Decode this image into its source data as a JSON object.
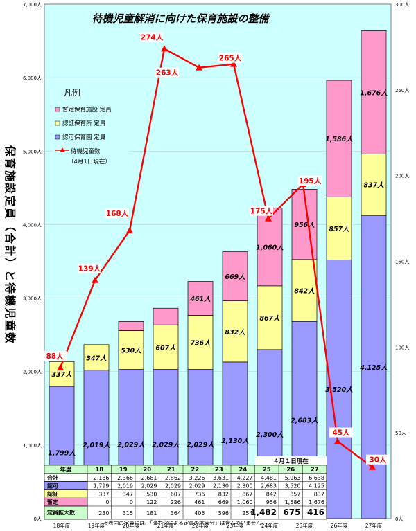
{
  "chart_data": {
    "type": "bar",
    "subtype": "stacked-bar-with-line",
    "title": "待機児童解消に向けた保育施設の整備",
    "ylabel_left": "保育施設定員（合計）と待機児童数",
    "ylim_left": [
      0,
      7000
    ],
    "ylim_right": [
      0,
      300
    ],
    "left_ticks": [
      "0人",
      "1,000人",
      "2,000人",
      "3,000人",
      "4,000人",
      "5,000人",
      "6,000人",
      "7,000人"
    ],
    "right_ticks": [
      "0人",
      "50人",
      "100人",
      "150人",
      "200人",
      "250人",
      "300人"
    ],
    "categories": [
      "18年度",
      "19年度",
      "20年度",
      "21年度",
      "22年度",
      "23年度",
      "24年度",
      "25年度",
      "26年度",
      "27年度"
    ],
    "series": [
      {
        "name": "認可保育園 定員",
        "color": "#9999ff",
        "values": [
          1799,
          2019,
          2029,
          2029,
          2029,
          2130,
          2300,
          2683,
          3520,
          4125
        ],
        "labels": [
          "1,799人",
          "2,019人",
          "2,029人",
          "2,029人",
          "2,029人",
          "2,130人",
          "2,300人",
          "2,683人",
          "3,520人",
          "4,125人"
        ]
      },
      {
        "name": "認証保育所 定員",
        "color": "#ffff99",
        "values": [
          337,
          347,
          530,
          607,
          736,
          832,
          867,
          842,
          857,
          837
        ],
        "labels": [
          "337人",
          "347人",
          "530人",
          "607人",
          "736人",
          "832人",
          "867人",
          "842人",
          "857人",
          "837人"
        ]
      },
      {
        "name": "暫定保育施設 定員",
        "color": "#ff99cc",
        "values": [
          0,
          0,
          122,
          226,
          461,
          669,
          1060,
          956,
          1586,
          1676
        ],
        "labels": [
          "",
          "",
          "",
          "",
          "461人",
          "669人",
          "1,060人",
          "956人",
          "1,586人",
          "1,676人"
        ]
      }
    ],
    "line": {
      "name": "待機児童数",
      "note": "（4月1日現在）",
      "color": "#ff0000",
      "values": [
        88,
        139,
        168,
        274,
        263,
        265,
        175,
        195,
        45,
        30
      ],
      "labels": [
        "88人",
        "139人",
        "168人",
        "274人",
        "263人",
        "265人",
        "175人",
        "195人",
        "45人",
        "30人"
      ]
    },
    "legend": {
      "title": "凡例",
      "position": "top-left"
    }
  },
  "table": {
    "corner_label": "年度",
    "note": "４月１日現在",
    "years": [
      "18",
      "19",
      "20",
      "21",
      "22",
      "23",
      "24",
      "25",
      "26",
      "27"
    ],
    "rows": [
      {
        "label": "合計",
        "color": "#ffffff",
        "values": [
          "2,136",
          "2,366",
          "2,681",
          "2,862",
          "3,226",
          "3,631",
          "4,227",
          "4,481",
          "5,963",
          "6,638"
        ]
      },
      {
        "label": "認可",
        "color": "#9999ff",
        "values": [
          "1,799",
          "2,019",
          "2,029",
          "2,029",
          "2,029",
          "2,130",
          "2,300",
          "2,683",
          "3,520",
          "4,125"
        ]
      },
      {
        "label": "認証",
        "color": "#ffff99",
        "values": [
          "337",
          "347",
          "530",
          "607",
          "736",
          "832",
          "867",
          "842",
          "857",
          "837"
        ]
      },
      {
        "label": "暫定",
        "color": "#ff99cc",
        "values": [
          "0",
          "0",
          "122",
          "226",
          "461",
          "669",
          "1,060",
          "956",
          "1,586",
          "1,676"
        ]
      },
      {
        "label": "定員拡大数",
        "color": "#ccffcc",
        "values": [
          "230",
          "315",
          "181",
          "364",
          "405",
          "596",
          "254",
          "1,482",
          "675",
          "416"
        ]
      }
    ],
    "footnote": "※表内の定員には、「弾力化による定員の拡大分」は含んでいません。"
  },
  "colors": {
    "plot_bg": "#ccffff",
    "line": "#ff0000",
    "frame": "#808080"
  }
}
